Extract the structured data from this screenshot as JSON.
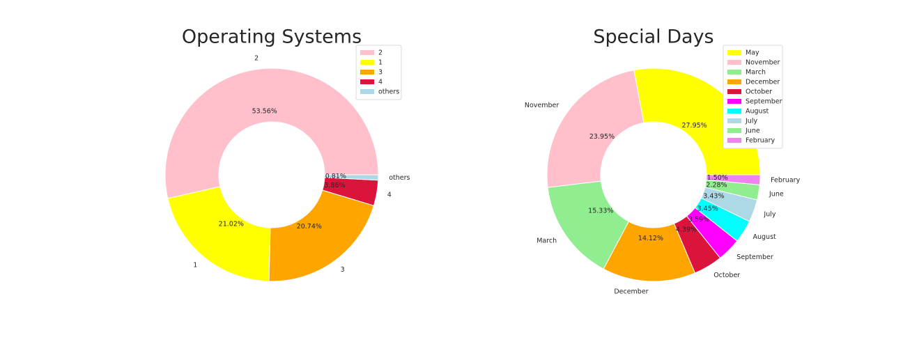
{
  "chart_data": [
    {
      "type": "pie",
      "donut": true,
      "title": "Operating Systems",
      "legend_position": "top-right",
      "slices": [
        {
          "label": "2",
          "value": 53.56,
          "pct_text": "53.56%",
          "color": "#ffc0cb"
        },
        {
          "label": "1",
          "value": 21.02,
          "pct_text": "21.02%",
          "color": "#ffff00"
        },
        {
          "label": "3",
          "value": 20.74,
          "pct_text": "20.74%",
          "color": "#ffa500"
        },
        {
          "label": "4",
          "value": 3.86,
          "pct_text": "3.86%",
          "color": "#dc143c"
        },
        {
          "label": "others",
          "value": 0.81,
          "pct_text": "0.81%",
          "color": "#add8e6"
        }
      ]
    },
    {
      "type": "pie",
      "donut": true,
      "title": "Special Days",
      "legend_position": "top-right",
      "slices": [
        {
          "label": "May",
          "value": 27.95,
          "pct_text": "27.95%",
          "color": "#ffff00"
        },
        {
          "label": "November",
          "value": 23.95,
          "pct_text": "23.95%",
          "color": "#ffc0cb"
        },
        {
          "label": "March",
          "value": 15.33,
          "pct_text": "15.33%",
          "color": "#90ee90"
        },
        {
          "label": "December",
          "value": 14.12,
          "pct_text": "14.12%",
          "color": "#ffa500"
        },
        {
          "label": "October",
          "value": 4.39,
          "pct_text": "4.39%",
          "color": "#dc143c"
        },
        {
          "label": "September",
          "value": 3.59,
          "pct_text": "3.59%",
          "color": "#ff00ff"
        },
        {
          "label": "August",
          "value": 3.45,
          "pct_text": "3.45%",
          "color": "#00ffff"
        },
        {
          "label": "July",
          "value": 3.43,
          "pct_text": "3.43%",
          "color": "#add8e6"
        },
        {
          "label": "June",
          "value": 2.28,
          "pct_text": "2.28%",
          "color": "#90ee90"
        },
        {
          "label": "February",
          "value": 1.5,
          "pct_text": "1.50%",
          "color": "#ee82ee"
        }
      ]
    }
  ]
}
